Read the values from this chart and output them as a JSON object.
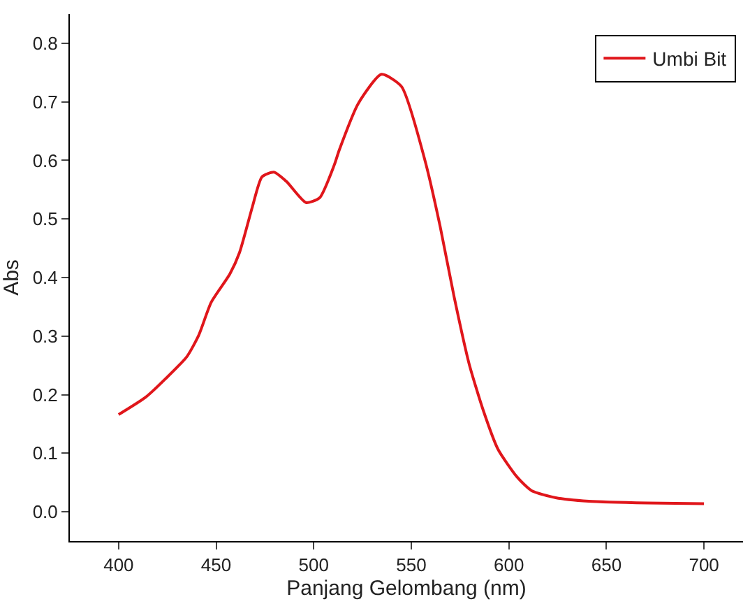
{
  "chart_data": {
    "type": "line",
    "xlabel": "Panjang Gelombang (nm)",
    "ylabel": "Abs",
    "xlim": [
      375,
      720
    ],
    "ylim": [
      -0.05,
      0.85
    ],
    "xticks": [
      400,
      450,
      500,
      550,
      600,
      650,
      700
    ],
    "yticks": [
      {
        "value": 0,
        "label": "0.0"
      },
      0.1,
      0.2,
      0.3,
      0.4,
      0.5,
      0.6,
      0.7,
      0.8
    ],
    "legend": "top right",
    "series": [
      {
        "name": "Umbi Bit",
        "color": "#e0161b",
        "x": [
          400,
          414,
          424,
          435,
          441,
          447.5,
          457,
          462,
          468.5,
          473.5,
          479.6,
          486,
          496,
          503,
          510.5,
          513,
          522.8,
          534.7,
          545,
          557,
          564.8,
          572,
          579.6,
          587,
          594.4,
          604.3,
          611.7,
          624,
          641,
          671,
          700
        ],
        "values": [
          0.166,
          0.196,
          0.227,
          0.265,
          0.301,
          0.358,
          0.406,
          0.443,
          0.52,
          0.572,
          0.58,
          0.564,
          0.528,
          0.536,
          0.592,
          0.617,
          0.697,
          0.747,
          0.726,
          0.6,
          0.487,
          0.366,
          0.253,
          0.172,
          0.107,
          0.059,
          0.036,
          0.024,
          0.018,
          0.015,
          0.014
        ]
      }
    ]
  }
}
